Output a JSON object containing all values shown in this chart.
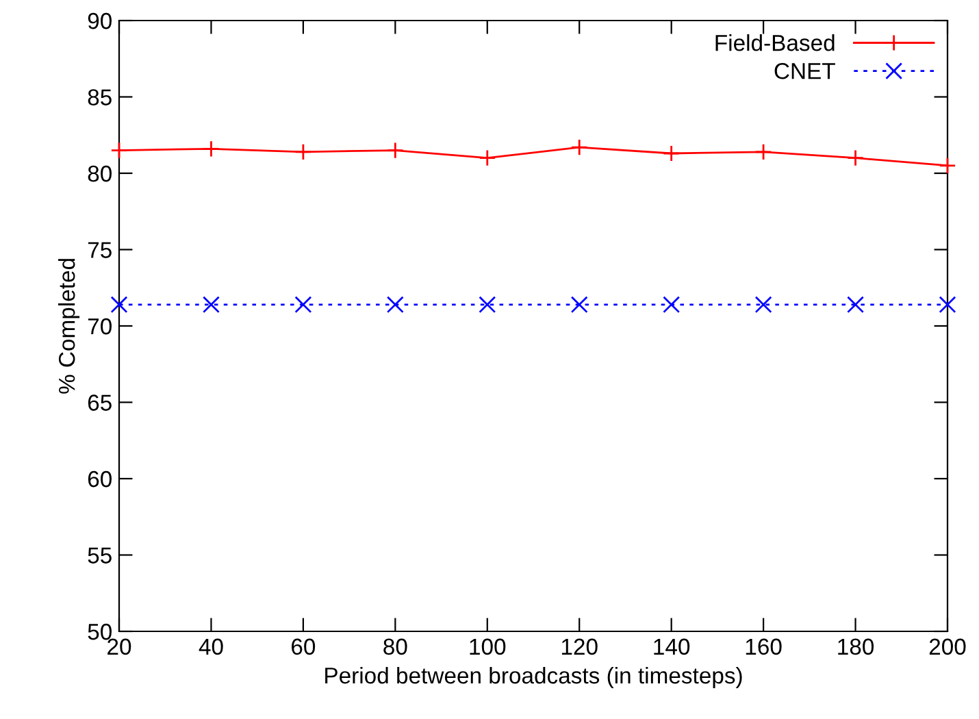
{
  "chart_data": {
    "type": "line",
    "xlabel": "Period between broadcasts (in timesteps)",
    "ylabel": "% Completed",
    "x": [
      20,
      40,
      60,
      80,
      100,
      120,
      140,
      160,
      180,
      200
    ],
    "series": [
      {
        "name": "Field-Based",
        "color": "#ff0000",
        "marker": "cross",
        "line_style": "solid",
        "values": [
          81.5,
          81.6,
          81.4,
          81.5,
          81.0,
          81.7,
          81.3,
          81.4,
          81.0,
          80.5
        ]
      },
      {
        "name": "CNET",
        "color": "#0000ff",
        "marker": "x",
        "line_style": "dotted",
        "values": [
          71.4,
          71.4,
          71.4,
          71.4,
          71.4,
          71.4,
          71.4,
          71.4,
          71.4,
          71.4
        ]
      }
    ],
    "xlim": [
      20,
      200
    ],
    "ylim": [
      50,
      90
    ],
    "xticks": [
      20,
      40,
      60,
      80,
      100,
      120,
      140,
      160,
      180,
      200
    ],
    "yticks": [
      50,
      55,
      60,
      65,
      70,
      75,
      80,
      85,
      90
    ],
    "grid": false,
    "legend": "top right"
  }
}
